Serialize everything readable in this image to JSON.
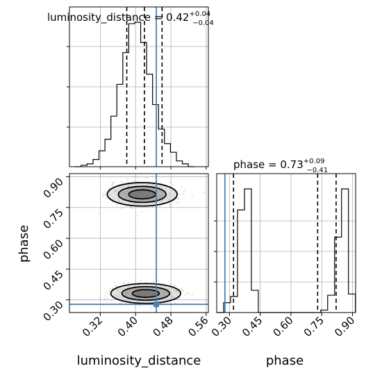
{
  "chart_data": [
    {
      "type": "histogram",
      "panel": "luminosity_distance-marginal",
      "title": {
        "name": "luminosity_distance",
        "median": "0.42",
        "plus": "+0.04",
        "minus": "−0.04"
      },
      "xlim": [
        0.25,
        0.565
      ],
      "bins_step": 0.0135,
      "bins_start": 0.263,
      "counts": [
        0,
        1,
        2,
        5,
        11,
        19,
        35,
        57,
        79,
        99,
        100,
        86,
        64,
        43,
        26,
        16,
        10,
        4,
        2,
        0
      ],
      "quantiles": [
        0.38,
        0.42,
        0.46
      ],
      "truth": 0.447
    },
    {
      "type": "scatter-contour",
      "panel": "phase-vs-luminosity_distance",
      "xlabel": "luminosity_distance",
      "ylabel": "phase",
      "xlim": [
        0.25,
        0.565
      ],
      "ylim": [
        0.238,
        0.915
      ],
      "xticks": [
        "0.32",
        "0.40",
        "0.48",
        "0.56"
      ],
      "xtick_values": [
        0.32,
        0.4,
        0.48,
        0.56
      ],
      "yticks": [
        "0.90",
        "0.75",
        "0.60",
        "0.45",
        "0.30"
      ],
      "ytick_values": [
        0.9,
        0.75,
        0.6,
        0.45,
        0.3
      ],
      "modes": [
        {
          "x": 0.415,
          "y": 0.814,
          "sx": 0.036,
          "sy": 0.026
        },
        {
          "x": 0.423,
          "y": 0.331,
          "sx": 0.036,
          "sy": 0.022
        }
      ],
      "truth": {
        "x": 0.447,
        "y": 0.278
      }
    },
    {
      "type": "histogram",
      "panel": "phase-marginal",
      "title": {
        "name": "phase",
        "median": "0.73",
        "plus": "+0.09",
        "minus": "−0.41"
      },
      "xlabel": "phase",
      "xlim": [
        0.238,
        0.915
      ],
      "xticks": [
        "0.30",
        "0.45",
        "0.60",
        "0.75",
        "0.90"
      ],
      "xtick_values": [
        0.3,
        0.45,
        0.6,
        0.75,
        0.9
      ],
      "bins_step": 0.0338,
      "bins_start": 0.238,
      "counts": [
        0,
        8,
        13,
        83,
        100,
        18,
        0,
        0,
        0,
        0,
        0,
        0,
        0,
        0,
        0,
        2,
        14,
        61,
        100,
        15
      ],
      "quantiles": [
        0.32,
        0.73,
        0.82
      ],
      "truth": 0.278
    }
  ],
  "colors": {
    "truth": "#4682b4",
    "grid": "#b0b0b0",
    "line": "#000000",
    "scatter": "#808080",
    "fill_inner": "#555555",
    "fill_mid": "#8c8c8c",
    "fill_outer": "#d0d0d0"
  }
}
